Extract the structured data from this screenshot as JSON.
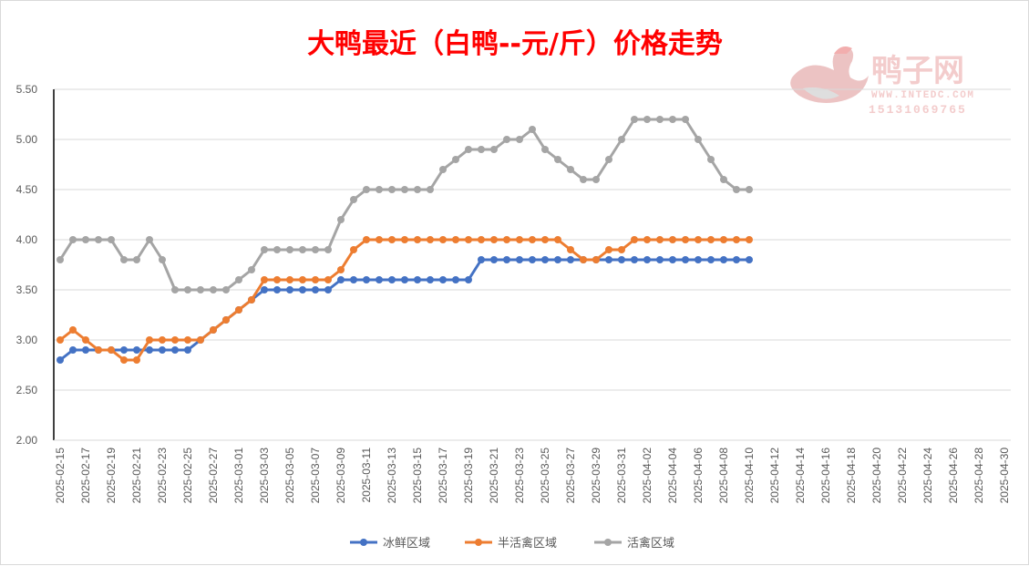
{
  "watermark": {
    "name": "鸭子网",
    "url": "WWW.INTEDC.COM",
    "phone": "15131069765"
  },
  "chart_data": {
    "type": "line",
    "title": "大鸭最近（白鸭--元/斤）价格走势",
    "xlabel": "",
    "ylabel": "",
    "ylim": [
      2.0,
      5.5
    ],
    "yticks": [
      "2.00",
      "2.50",
      "3.00",
      "3.50",
      "4.00",
      "4.50",
      "5.00",
      "5.50"
    ],
    "grid": true,
    "legend_position": "bottom",
    "x_start": "2025-02-15",
    "x_end": "2025-04-30",
    "xtick_labels": [
      "2025-02-15",
      "2025-02-17",
      "2025-02-19",
      "2025-02-21",
      "2025-02-23",
      "2025-02-25",
      "2025-02-27",
      "2025-03-01",
      "2025-03-03",
      "2025-03-05",
      "2025-03-07",
      "2025-03-09",
      "2025-03-11",
      "2025-03-13",
      "2025-03-15",
      "2025-03-17",
      "2025-03-19",
      "2025-03-21",
      "2025-03-23",
      "2025-03-25",
      "2025-03-27",
      "2025-03-29",
      "2025-03-31",
      "2025-04-02",
      "2025-04-04",
      "2025-04-06",
      "2025-04-08",
      "2025-04-10",
      "2025-04-12",
      "2025-04-14",
      "2025-04-16",
      "2025-04-18",
      "2025-04-20",
      "2025-04-22",
      "2025-04-24",
      "2025-04-26",
      "2025-04-28",
      "2025-04-30"
    ],
    "x": [
      "2025-02-15",
      "2025-02-16",
      "2025-02-17",
      "2025-02-18",
      "2025-02-19",
      "2025-02-20",
      "2025-02-21",
      "2025-02-22",
      "2025-02-23",
      "2025-02-24",
      "2025-02-25",
      "2025-02-26",
      "2025-02-27",
      "2025-02-28",
      "2025-03-01",
      "2025-03-02",
      "2025-03-03",
      "2025-03-04",
      "2025-03-05",
      "2025-03-06",
      "2025-03-07",
      "2025-03-08",
      "2025-03-09",
      "2025-03-10",
      "2025-03-11",
      "2025-03-12",
      "2025-03-13",
      "2025-03-14",
      "2025-03-15",
      "2025-03-16",
      "2025-03-17",
      "2025-03-18",
      "2025-03-19",
      "2025-03-20",
      "2025-03-21",
      "2025-03-22",
      "2025-03-23",
      "2025-03-24",
      "2025-03-25",
      "2025-03-26",
      "2025-03-27",
      "2025-03-28",
      "2025-03-29",
      "2025-03-30",
      "2025-03-31",
      "2025-04-01",
      "2025-04-02",
      "2025-04-03",
      "2025-04-04",
      "2025-04-05",
      "2025-04-06",
      "2025-04-07",
      "2025-04-08",
      "2025-04-09",
      "2025-04-10"
    ],
    "series": [
      {
        "name": "冰鲜区域",
        "color": "#4472c4",
        "values": [
          2.8,
          2.9,
          2.9,
          2.9,
          2.9,
          2.9,
          2.9,
          2.9,
          2.9,
          2.9,
          2.9,
          3.0,
          3.1,
          3.2,
          3.3,
          3.4,
          3.5,
          3.5,
          3.5,
          3.5,
          3.5,
          3.5,
          3.6,
          3.6,
          3.6,
          3.6,
          3.6,
          3.6,
          3.6,
          3.6,
          3.6,
          3.6,
          3.6,
          3.8,
          3.8,
          3.8,
          3.8,
          3.8,
          3.8,
          3.8,
          3.8,
          3.8,
          3.8,
          3.8,
          3.8,
          3.8,
          3.8,
          3.8,
          3.8,
          3.8,
          3.8,
          3.8,
          3.8,
          3.8,
          3.8
        ]
      },
      {
        "name": "半活禽区域",
        "color": "#ed7d31",
        "values": [
          3.0,
          3.1,
          3.0,
          2.9,
          2.9,
          2.8,
          2.8,
          3.0,
          3.0,
          3.0,
          3.0,
          3.0,
          3.1,
          3.2,
          3.3,
          3.4,
          3.6,
          3.6,
          3.6,
          3.6,
          3.6,
          3.6,
          3.7,
          3.9,
          4.0,
          4.0,
          4.0,
          4.0,
          4.0,
          4.0,
          4.0,
          4.0,
          4.0,
          4.0,
          4.0,
          4.0,
          4.0,
          4.0,
          4.0,
          4.0,
          3.9,
          3.8,
          3.8,
          3.9,
          3.9,
          4.0,
          4.0,
          4.0,
          4.0,
          4.0,
          4.0,
          4.0,
          4.0,
          4.0,
          4.0
        ]
      },
      {
        "name": "活禽区域",
        "color": "#a5a5a5",
        "values": [
          3.8,
          4.0,
          4.0,
          4.0,
          4.0,
          3.8,
          3.8,
          4.0,
          3.8,
          3.5,
          3.5,
          3.5,
          3.5,
          3.5,
          3.6,
          3.7,
          3.9,
          3.9,
          3.9,
          3.9,
          3.9,
          3.9,
          4.2,
          4.4,
          4.5,
          4.5,
          4.5,
          4.5,
          4.5,
          4.5,
          4.7,
          4.8,
          4.9,
          4.9,
          4.9,
          5.0,
          5.0,
          5.1,
          4.9,
          4.8,
          4.7,
          4.6,
          4.6,
          4.8,
          5.0,
          5.2,
          5.2,
          5.2,
          5.2,
          5.2,
          5.0,
          4.8,
          4.6,
          4.5,
          4.5
        ]
      }
    ]
  }
}
